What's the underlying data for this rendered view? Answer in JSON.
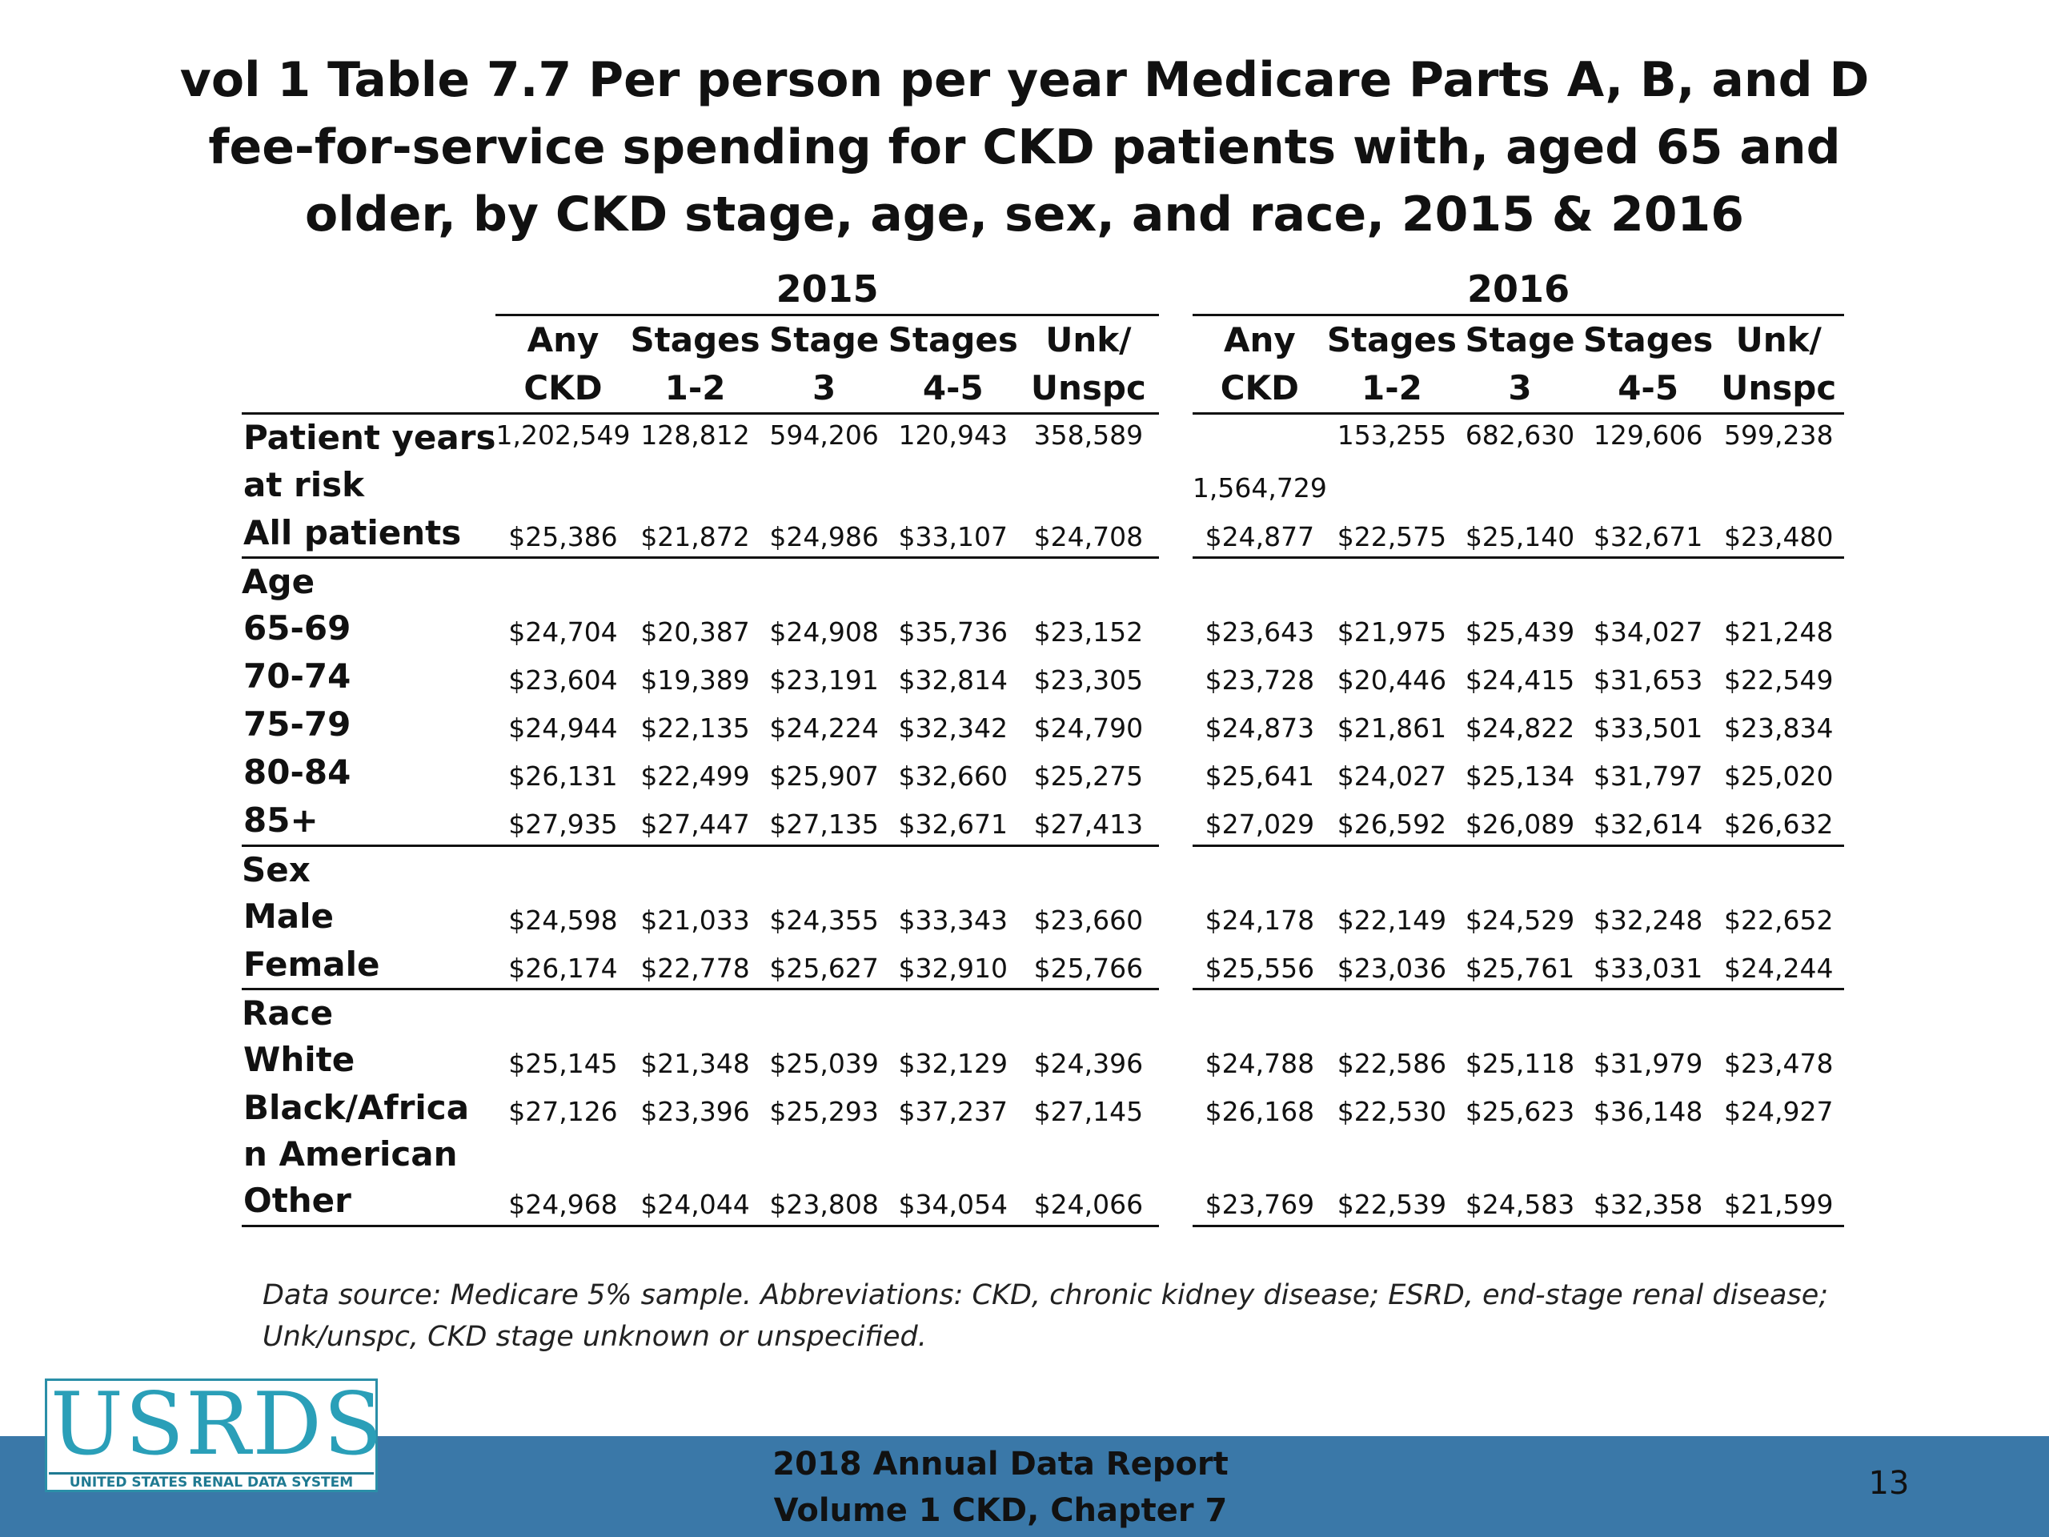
{
  "title": "vol 1 Table 7.7 Per person per year Medicare Parts A, B, and D fee-for-service spending for CKD patients with, aged 65 and older, by CKD stage, age, sex, and race, 2015 & 2016",
  "table": {
    "years": [
      "2015",
      "2016"
    ],
    "col_headers": [
      [
        "Any",
        "CKD"
      ],
      [
        "Stages",
        "1-2"
      ],
      [
        "Stage",
        "3"
      ],
      [
        "Stages",
        "4-5"
      ],
      [
        "Unk/",
        "Unspc"
      ]
    ],
    "patient_years": {
      "label_line1": "Patient years",
      "label_line2": "at risk",
      "values_2015": [
        "1,202,549",
        "128,812",
        "594,206",
        "120,943",
        "358,589"
      ],
      "values_2016": [
        "1,564,729",
        "153,255",
        "682,630",
        "129,606",
        "599,238"
      ]
    },
    "all_patients": {
      "label": "All patients",
      "values_2015": [
        "$25,386",
        "$21,872",
        "$24,986",
        "$33,107",
        "$24,708"
      ],
      "values_2016": [
        "$24,877",
        "$22,575",
        "$25,140",
        "$32,671",
        "$23,480"
      ]
    },
    "sections": [
      {
        "label": "Age",
        "rows": [
          {
            "label": "65-69",
            "values_2015": [
              "$24,704",
              "$20,387",
              "$24,908",
              "$35,736",
              "$23,152"
            ],
            "values_2016": [
              "$23,643",
              "$21,975",
              "$25,439",
              "$34,027",
              "$21,248"
            ]
          },
          {
            "label": "70-74",
            "values_2015": [
              "$23,604",
              "$19,389",
              "$23,191",
              "$32,814",
              "$23,305"
            ],
            "values_2016": [
              "$23,728",
              "$20,446",
              "$24,415",
              "$31,653",
              "$22,549"
            ]
          },
          {
            "label": "75-79",
            "values_2015": [
              "$24,944",
              "$22,135",
              "$24,224",
              "$32,342",
              "$24,790"
            ],
            "values_2016": [
              "$24,873",
              "$21,861",
              "$24,822",
              "$33,501",
              "$23,834"
            ]
          },
          {
            "label": "80-84",
            "values_2015": [
              "$26,131",
              "$22,499",
              "$25,907",
              "$32,660",
              "$25,275"
            ],
            "values_2016": [
              "$25,641",
              "$24,027",
              "$25,134",
              "$31,797",
              "$25,020"
            ]
          },
          {
            "label": "85+",
            "values_2015": [
              "$27,935",
              "$27,447",
              "$27,135",
              "$32,671",
              "$27,413"
            ],
            "values_2016": [
              "$27,029",
              "$26,592",
              "$26,089",
              "$32,614",
              "$26,632"
            ]
          }
        ]
      },
      {
        "label": "Sex",
        "rows": [
          {
            "label": "Male",
            "values_2015": [
              "$24,598",
              "$21,033",
              "$24,355",
              "$33,343",
              "$23,660"
            ],
            "values_2016": [
              "$24,178",
              "$22,149",
              "$24,529",
              "$32,248",
              "$22,652"
            ]
          },
          {
            "label": "Female",
            "values_2015": [
              "$26,174",
              "$22,778",
              "$25,627",
              "$32,910",
              "$25,766"
            ],
            "values_2016": [
              "$25,556",
              "$23,036",
              "$25,761",
              "$33,031",
              "$24,244"
            ]
          }
        ]
      },
      {
        "label": "Race",
        "rows": [
          {
            "label": "White",
            "values_2015": [
              "$25,145",
              "$21,348",
              "$25,039",
              "$32,129",
              "$24,396"
            ],
            "values_2016": [
              "$24,788",
              "$22,586",
              "$25,118",
              "$31,979",
              "$23,478"
            ]
          },
          {
            "label": "Black/Africa",
            "label_line2": "n American",
            "values_2015": [
              "$27,126",
              "$23,396",
              "$25,293",
              "$37,237",
              "$27,145"
            ],
            "values_2016": [
              "$26,168",
              "$22,530",
              "$25,623",
              "$36,148",
              "$24,927"
            ]
          },
          {
            "label": "Other",
            "values_2015": [
              "$24,968",
              "$24,044",
              "$23,808",
              "$34,054",
              "$24,066"
            ],
            "values_2016": [
              "$23,769",
              "$22,539",
              "$24,583",
              "$32,358",
              "$21,599"
            ]
          }
        ]
      }
    ]
  },
  "footnote": "Data source: Medicare 5% sample. Abbreviations: CKD, chronic kidney disease; ESRD, end-stage renal disease; Unk/unspc, CKD stage unknown or unspecified.",
  "footer": {
    "line1": "2018 Annual Data Report",
    "line2": "Volume 1 CKD, Chapter 7",
    "page_number": "13"
  },
  "logo": {
    "word": "USRDS",
    "subtitle": "UNITED STATES RENAL DATA SYSTEM"
  },
  "colors": {
    "footer_bar": "#3a78a8",
    "logo_teal": "#2a9fb8"
  }
}
